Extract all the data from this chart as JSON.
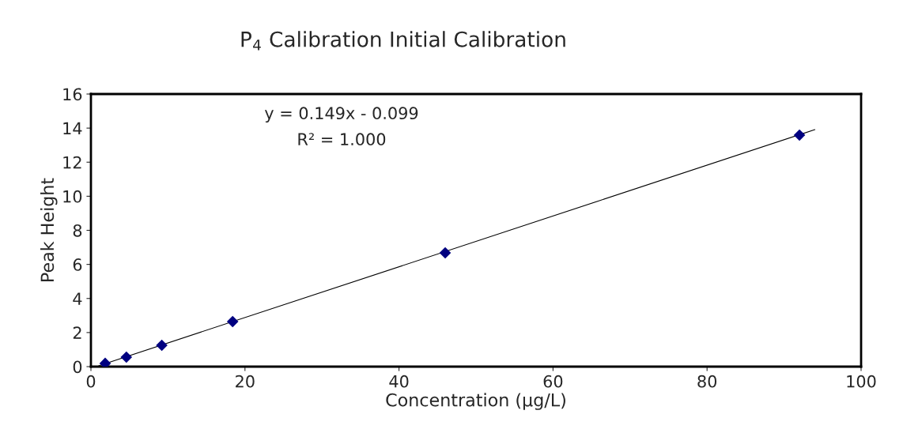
{
  "chart_data": {
    "type": "scatter",
    "title": "P$_{4}$ Calibration Initial Calibration",
    "xlabel": "Concentration (µg/L)",
    "ylabel": "Peak Height",
    "series": [
      {
        "color": "#000080",
        "marker": "diamond",
        "x": [
          1.85,
          4.6,
          9.2,
          18.4,
          46,
          92
        ],
        "values": [
          0.19,
          0.56,
          1.25,
          2.64,
          6.68,
          13.59
        ]
      },
      {
        "type": "line",
        "color": "#000000",
        "marker": "none",
        "line_style": "solid",
        "x": [
          1,
          94
        ],
        "values": [
          0.05,
          13.91
        ]
      }
    ],
    "annotations": [
      "y = 0.149x - 0.099",
      "R² = 1.000"
    ],
    "xlim": [
      0,
      100
    ],
    "xticks": [
      0,
      20,
      40,
      60,
      80,
      100
    ],
    "ylim": [
      0,
      16
    ],
    "yticks": [
      0,
      2,
      4,
      6,
      8,
      10,
      12,
      14,
      16
    ],
    "grid": false,
    "legend": false
  }
}
